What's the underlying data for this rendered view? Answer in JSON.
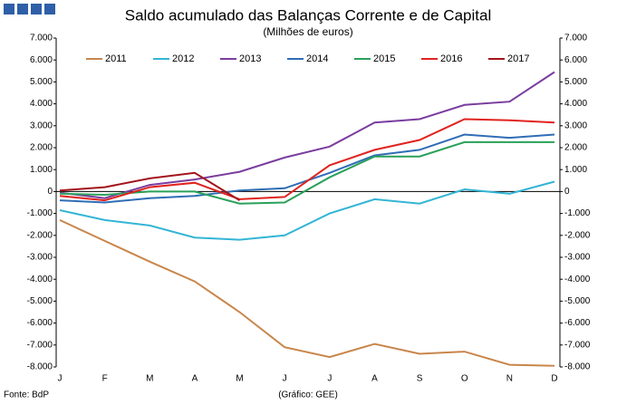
{
  "chart_data": {
    "type": "line",
    "title": "Saldo acumulado das Balanças Corrente e de Capital",
    "subtitle": "(Milhões de euros)",
    "source": "Fonte: BdP",
    "credit": "(Gráfico: GEE)",
    "categories": [
      "J",
      "F",
      "M",
      "A",
      "M",
      "J",
      "J",
      "A",
      "S",
      "O",
      "N",
      "D"
    ],
    "series": [
      {
        "name": "2011",
        "color": "#c8864b",
        "values": [
          -1300,
          -2250,
          -3200,
          -4100,
          -5500,
          -7100,
          -7550,
          -6950,
          -7400,
          -7300,
          -7900,
          -7950
        ]
      },
      {
        "name": "2012",
        "color": "#33b5d5",
        "values": [
          -850,
          -1300,
          -1550,
          -2100,
          -2200,
          -2000,
          -1000,
          -350,
          -550,
          100,
          -100,
          450
        ]
      },
      {
        "name": "2013",
        "color": "#7a3d9e",
        "values": [
          -50,
          -300,
          300,
          550,
          900,
          1550,
          2050,
          3150,
          3300,
          3950,
          4100,
          5450
        ]
      },
      {
        "name": "2014",
        "color": "#2f6db5",
        "values": [
          -400,
          -500,
          -300,
          -200,
          50,
          150,
          850,
          1650,
          1900,
          2600,
          2450,
          2600
        ]
      },
      {
        "name": "2015",
        "color": "#2aa05a",
        "values": [
          -100,
          -150,
          0,
          0,
          -550,
          -500,
          650,
          1600,
          1600,
          2250,
          2250,
          2250
        ]
      },
      {
        "name": "2016",
        "color": "#e0231f",
        "values": [
          -200,
          -400,
          200,
          400,
          -350,
          -250,
          1200,
          1900,
          2350,
          3300,
          3250,
          3150
        ]
      },
      {
        "name": "2017",
        "color": "#a3141c",
        "values": [
          50,
          200,
          600,
          850,
          -400,
          null,
          null,
          null,
          null,
          null,
          null,
          null
        ]
      }
    ],
    "ylim": [
      -8000,
      7000
    ],
    "yticks": [
      {
        "value": 7000,
        "label": "7.000"
      },
      {
        "value": 6000,
        "label": "6.000"
      },
      {
        "value": 5000,
        "label": "5.000"
      },
      {
        "value": 4000,
        "label": "4.000"
      },
      {
        "value": 3000,
        "label": "3.000"
      },
      {
        "value": 2000,
        "label": "2.000"
      },
      {
        "value": 1000,
        "label": "1.000"
      },
      0,
      {
        "value": -1000,
        "label": "-1.000"
      },
      {
        "value": -2000,
        "label": "-2.000"
      },
      {
        "value": -3000,
        "label": "-3.000"
      },
      {
        "value": -4000,
        "label": "-4.000"
      },
      {
        "value": -5000,
        "label": "-5.000"
      },
      {
        "value": -6000,
        "label": "-6.000"
      },
      {
        "value": -7000,
        "label": "-7.000"
      },
      {
        "value": -8000,
        "label": "-8.000"
      }
    ],
    "y2lim": [
      -8000,
      7000
    ],
    "y2ticks": [
      {
        "value": 7000,
        "label": "7.000"
      },
      {
        "value": 6000,
        "label": "6.000"
      },
      {
        "value": 5000,
        "label": "5.000"
      },
      {
        "value": 4000,
        "label": "4.000"
      },
      {
        "value": 3000,
        "label": "3.000"
      },
      {
        "value": 2000,
        "label": "2.000"
      },
      {
        "value": 1000,
        "label": "1.000"
      },
      0,
      {
        "value": -1000,
        "label": "-1.000"
      },
      {
        "value": -2000,
        "label": "-2.000"
      },
      {
        "value": -3000,
        "label": "-3.000"
      },
      {
        "value": -4000,
        "label": "-4.000"
      },
      {
        "value": -5000,
        "label": "-5.000"
      },
      {
        "value": -6000,
        "label": "-6.000"
      },
      {
        "value": -7000,
        "label": "-7.000"
      },
      {
        "value": -8000,
        "label": "-8.000"
      }
    ],
    "grid": false,
    "legend": "top"
  }
}
